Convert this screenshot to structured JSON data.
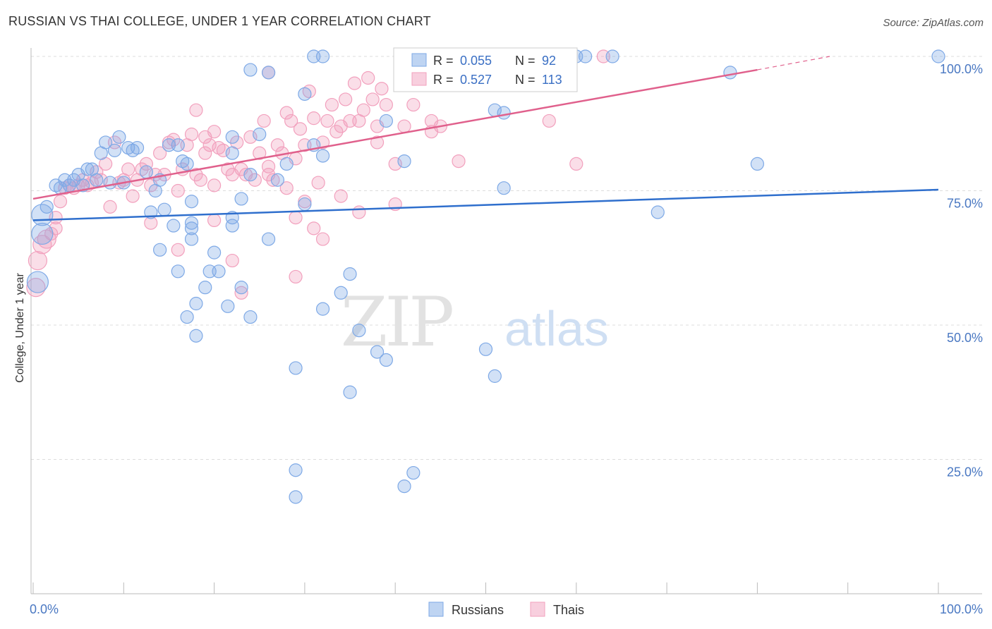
{
  "title": "RUSSIAN VS THAI COLLEGE, UNDER 1 YEAR CORRELATION CHART",
  "source": "Source: ZipAtlas.com",
  "colors": {
    "russians": "#7ea9e6",
    "russians_line": "#2f6fcd",
    "thais": "#f2a0bd",
    "thais_line": "#e0608c",
    "tick": "#4a78c2"
  },
  "chart_data": {
    "type": "scatter",
    "xlabel": "",
    "ylabel": "College, Under 1 year",
    "xlim": [
      0,
      100
    ],
    "ylim": [
      0,
      100
    ],
    "x_tick_labels": {
      "left": "0.0%",
      "right": "100.0%"
    },
    "y_ticks": [
      {
        "value": 25,
        "label": "25.0%"
      },
      {
        "value": 50,
        "label": "50.0%"
      },
      {
        "value": 75,
        "label": "75.0%"
      },
      {
        "value": 100,
        "label": "100.0%"
      }
    ],
    "legend": {
      "placement": "top-center",
      "rows": [
        {
          "r_label": "R =",
          "r": "0.055",
          "n_label": "N =",
          "n": "92"
        },
        {
          "r_label": "R =",
          "r": "0.527",
          "n_label": "N =",
          "n": "113"
        }
      ]
    },
    "series": [
      {
        "name": "Russians",
        "trend": {
          "x0": 0,
          "y0": 69.5,
          "x1": 100,
          "y1": 75.2
        },
        "points": [
          [
            0.5,
            58
          ],
          [
            1,
            70.5
          ],
          [
            1,
            67
          ],
          [
            1.5,
            72
          ],
          [
            2.5,
            76
          ],
          [
            3,
            75.5
          ],
          [
            3.5,
            77
          ],
          [
            4,
            76
          ],
          [
            4.5,
            77
          ],
          [
            5,
            78
          ],
          [
            5.5,
            76
          ],
          [
            6,
            79
          ],
          [
            6.5,
            79
          ],
          [
            7,
            77
          ],
          [
            7.5,
            82
          ],
          [
            8,
            84
          ],
          [
            8.5,
            76.5
          ],
          [
            9,
            82.5
          ],
          [
            9.5,
            85
          ],
          [
            10,
            76.5
          ],
          [
            10.5,
            83
          ],
          [
            11,
            82.5
          ],
          [
            11.5,
            83
          ],
          [
            12.5,
            78.5
          ],
          [
            13,
            71
          ],
          [
            13.5,
            75
          ],
          [
            14,
            77
          ],
          [
            14.5,
            71.5
          ],
          [
            15,
            83.5
          ],
          [
            15.5,
            68.5
          ],
          [
            16,
            83.5
          ],
          [
            16.5,
            80.5
          ],
          [
            17,
            80
          ],
          [
            14,
            64
          ],
          [
            16,
            60
          ],
          [
            17,
            51.5
          ],
          [
            17.5,
            66
          ],
          [
            18,
            54
          ],
          [
            17.5,
            73
          ],
          [
            17.5,
            68
          ],
          [
            17.5,
            69
          ],
          [
            19,
            57
          ],
          [
            19.5,
            60
          ],
          [
            20,
            63.5
          ],
          [
            20.5,
            60
          ],
          [
            18,
            48
          ],
          [
            21.5,
            53.5
          ],
          [
            22,
            82
          ],
          [
            22,
            68.5
          ],
          [
            22,
            70
          ],
          [
            23,
            57
          ],
          [
            23,
            73.5
          ],
          [
            24,
            51.5
          ],
          [
            24,
            78
          ],
          [
            25,
            85.5
          ],
          [
            26,
            66
          ],
          [
            27,
            77
          ],
          [
            28,
            80
          ],
          [
            30,
            93
          ],
          [
            30,
            72.5
          ],
          [
            31,
            100
          ],
          [
            31,
            83.5
          ],
          [
            32,
            100
          ],
          [
            32,
            81.5
          ],
          [
            32,
            53
          ],
          [
            34,
            56
          ],
          [
            35,
            59.5
          ],
          [
            36,
            49
          ],
          [
            38,
            45
          ],
          [
            39,
            43.5
          ],
          [
            39,
            88
          ],
          [
            41,
            80.5
          ],
          [
            41,
            20
          ],
          [
            42,
            22.5
          ],
          [
            50,
            45.5
          ],
          [
            51,
            40.5
          ],
          [
            51,
            90
          ],
          [
            52,
            89.5
          ],
          [
            52,
            75.5
          ],
          [
            60,
            100
          ],
          [
            61,
            100
          ],
          [
            64,
            100
          ],
          [
            69,
            71
          ],
          [
            77,
            97
          ],
          [
            80,
            80
          ],
          [
            100,
            100
          ],
          [
            24,
            97.5
          ],
          [
            26,
            97
          ],
          [
            29,
            23
          ],
          [
            29,
            18
          ],
          [
            29,
            42
          ],
          [
            35,
            37.5
          ],
          [
            22,
            85
          ]
        ]
      },
      {
        "name": "Thais",
        "trend": {
          "x0": 0,
          "y0": 73.5,
          "x1": 80,
          "y1": 97.5,
          "dash_to_x": 88,
          "dash_to_y": 100
        },
        "points": [
          [
            0.3,
            57
          ],
          [
            0.5,
            62
          ],
          [
            1,
            65
          ],
          [
            1.5,
            66
          ],
          [
            2,
            67
          ],
          [
            2.5,
            68
          ],
          [
            2.5,
            70
          ],
          [
            3,
            73
          ],
          [
            3.5,
            75.5
          ],
          [
            4,
            76
          ],
          [
            4.5,
            75.5
          ],
          [
            5,
            76
          ],
          [
            5.5,
            77
          ],
          [
            6,
            76
          ],
          [
            6.5,
            76.5
          ],
          [
            7,
            78.5
          ],
          [
            7.5,
            77
          ],
          [
            8,
            80
          ],
          [
            8.5,
            72
          ],
          [
            9,
            84
          ],
          [
            9.5,
            76.5
          ],
          [
            10,
            77
          ],
          [
            10.5,
            79
          ],
          [
            11,
            74
          ],
          [
            11.5,
            77
          ],
          [
            12,
            79
          ],
          [
            12.5,
            80
          ],
          [
            13,
            76
          ],
          [
            13.5,
            78
          ],
          [
            14,
            82
          ],
          [
            14.5,
            78
          ],
          [
            15,
            84
          ],
          [
            15.5,
            84.5
          ],
          [
            16,
            75
          ],
          [
            16.5,
            79
          ],
          [
            17,
            83.5
          ],
          [
            17.5,
            85.5
          ],
          [
            18,
            78
          ],
          [
            18.5,
            77
          ],
          [
            19,
            85
          ],
          [
            19.5,
            83.5
          ],
          [
            20,
            86
          ],
          [
            20.5,
            83
          ],
          [
            21,
            82.5
          ],
          [
            21.5,
            79
          ],
          [
            22,
            78
          ],
          [
            22.5,
            84
          ],
          [
            23,
            79
          ],
          [
            23.5,
            78
          ],
          [
            24,
            85
          ],
          [
            24.5,
            77
          ],
          [
            25,
            82
          ],
          [
            25.5,
            88
          ],
          [
            26,
            79.5
          ],
          [
            26.5,
            77
          ],
          [
            27,
            83.5
          ],
          [
            27.5,
            82
          ],
          [
            28,
            89.5
          ],
          [
            28.5,
            88
          ],
          [
            29,
            81
          ],
          [
            29.5,
            86.5
          ],
          [
            30,
            83.5
          ],
          [
            30.5,
            93.5
          ],
          [
            31,
            88.5
          ],
          [
            31.5,
            76.5
          ],
          [
            32,
            84
          ],
          [
            32.5,
            88
          ],
          [
            33,
            91
          ],
          [
            33.5,
            86
          ],
          [
            34,
            87
          ],
          [
            34.5,
            92
          ],
          [
            35,
            88
          ],
          [
            35.5,
            95
          ],
          [
            36,
            88
          ],
          [
            36.5,
            90
          ],
          [
            37,
            96
          ],
          [
            37.5,
            92
          ],
          [
            38,
            87
          ],
          [
            38.5,
            94
          ],
          [
            39,
            91
          ],
          [
            40,
            80
          ],
          [
            41,
            87
          ],
          [
            42,
            91
          ],
          [
            44,
            88
          ],
          [
            45,
            87
          ],
          [
            47,
            80.5
          ],
          [
            52,
            96
          ],
          [
            54,
            100
          ],
          [
            57,
            88
          ],
          [
            60,
            80
          ],
          [
            63,
            100
          ],
          [
            26,
            78
          ],
          [
            28,
            75.5
          ],
          [
            29,
            70
          ],
          [
            29,
            59
          ],
          [
            30,
            73
          ],
          [
            31,
            68
          ],
          [
            32,
            66
          ],
          [
            34,
            74
          ],
          [
            36,
            71
          ],
          [
            38,
            84
          ],
          [
            16,
            64
          ],
          [
            13,
            69
          ],
          [
            23,
            56
          ],
          [
            20,
            69.5
          ],
          [
            22,
            62
          ],
          [
            18,
            90
          ],
          [
            26,
            97
          ],
          [
            40,
            72.5
          ],
          [
            44,
            86
          ],
          [
            47,
            100
          ],
          [
            50,
            97
          ],
          [
            19,
            82
          ],
          [
            20,
            76
          ]
        ]
      }
    ]
  },
  "bottom_legend": [
    {
      "label": "Russians"
    },
    {
      "label": "Thais"
    }
  ],
  "watermark": {
    "zip": "ZIP",
    "atlas": "atlas"
  }
}
